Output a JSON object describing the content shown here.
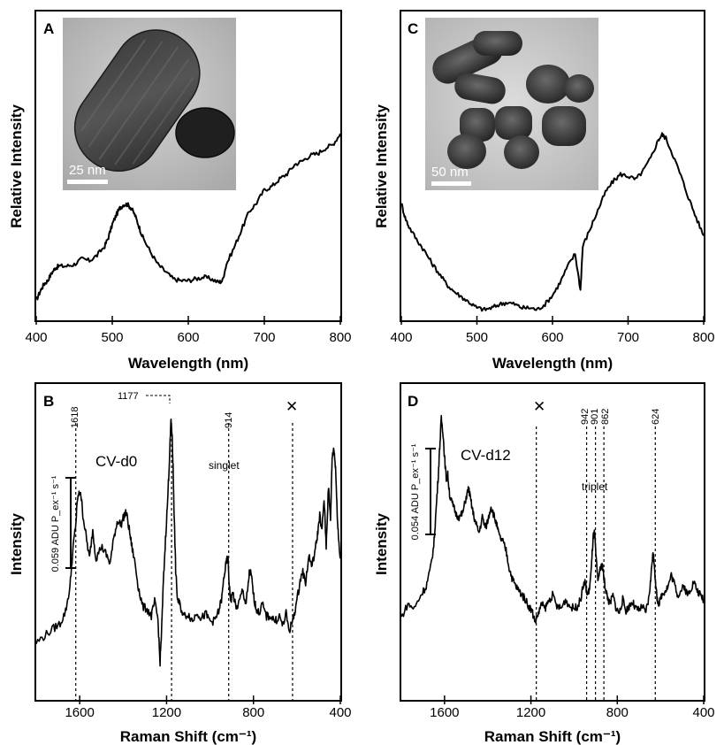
{
  "chart_data": [
    {
      "panel": "A",
      "type": "line",
      "xlabel": "Wavelength (nm)",
      "ylabel": "Relative Intensity",
      "xlim": [
        400,
        800
      ],
      "xticks": [
        "400",
        "500",
        "600",
        "700",
        "800"
      ],
      "y_axis_ticks": "none",
      "grid": false,
      "series": [
        {
          "x": [
            400,
            405,
            410,
            415,
            420,
            425,
            430,
            440,
            450,
            460,
            470,
            480,
            490,
            495,
            500,
            505,
            510,
            515,
            520,
            525,
            530,
            535,
            540,
            550,
            560,
            570,
            580,
            590,
            600,
            610,
            620,
            630,
            640,
            645,
            650,
            660,
            670,
            680,
            690,
            700,
            710,
            720,
            730,
            740,
            750,
            760,
            770,
            780,
            790,
            800
          ],
          "y": [
            0.05,
            0.1,
            0.14,
            0.16,
            0.2,
            0.23,
            0.24,
            0.24,
            0.25,
            0.28,
            0.27,
            0.3,
            0.35,
            0.4,
            0.47,
            0.52,
            0.56,
            0.58,
            0.58,
            0.56,
            0.52,
            0.46,
            0.4,
            0.32,
            0.25,
            0.21,
            0.17,
            0.16,
            0.16,
            0.17,
            0.18,
            0.17,
            0.15,
            0.16,
            0.25,
            0.34,
            0.44,
            0.54,
            0.59,
            0.66,
            0.68,
            0.72,
            0.75,
            0.8,
            0.82,
            0.85,
            0.86,
            0.89,
            0.91,
            0.97
          ]
        }
      ],
      "inset": {
        "description": "TEM image",
        "scale_bar": "25 nm"
      }
    },
    {
      "panel": "C",
      "type": "line",
      "xlabel": "Wavelength (nm)",
      "ylabel": "Relative Intensity",
      "xlim": [
        400,
        800
      ],
      "xticks": [
        "400",
        "500",
        "600",
        "700",
        "800"
      ],
      "y_axis_ticks": "none",
      "grid": false,
      "series": [
        {
          "x": [
            400,
            405,
            410,
            420,
            430,
            440,
            450,
            460,
            470,
            480,
            490,
            500,
            510,
            520,
            530,
            540,
            550,
            560,
            570,
            580,
            590,
            600,
            610,
            620,
            630,
            637,
            640,
            650,
            660,
            670,
            680,
            690,
            700,
            710,
            720,
            730,
            740,
            745,
            750,
            760,
            770,
            780,
            790,
            800
          ],
          "y": [
            0.6,
            0.52,
            0.47,
            0.4,
            0.34,
            0.27,
            0.21,
            0.15,
            0.11,
            0.08,
            0.05,
            0.02,
            0.01,
            0.02,
            0.04,
            0.05,
            0.04,
            0.02,
            0.02,
            0.01,
            0.04,
            0.09,
            0.16,
            0.25,
            0.32,
            0.12,
            0.36,
            0.46,
            0.56,
            0.66,
            0.72,
            0.76,
            0.75,
            0.73,
            0.78,
            0.85,
            0.95,
            0.98,
            0.96,
            0.86,
            0.75,
            0.63,
            0.52,
            0.42
          ]
        }
      ],
      "inset": {
        "description": "TEM image",
        "scale_bar": "50 nm"
      }
    },
    {
      "panel": "B",
      "type": "line",
      "xlabel": "Raman Shift (cm⁻¹)",
      "ylabel": "Intensity",
      "xlim": [
        1800,
        400
      ],
      "xticks": [
        "1600",
        "1200",
        "800",
        "400"
      ],
      "y_axis_ticks": "none",
      "grid": false,
      "species_label": "CV-d0",
      "scale_bar_label": "0.059 ADU P_ex⁻¹ s⁻¹",
      "marked_peaks": [
        "1618",
        "1177",
        "914"
      ],
      "peak_positions": [
        1618,
        1177,
        914
      ],
      "annotation": "singlet",
      "cross_mark": {
        "symbol": "✕",
        "x": 620
      },
      "series": [
        {
          "x": [
            1800,
            1760,
            1720,
            1690,
            1665,
            1645,
            1630,
            1618,
            1610,
            1596,
            1585,
            1570,
            1555,
            1540,
            1525,
            1500,
            1480,
            1460,
            1440,
            1425,
            1410,
            1395,
            1385,
            1372,
            1360,
            1345,
            1330,
            1310,
            1290,
            1270,
            1255,
            1240,
            1230,
            1222,
            1215,
            1205,
            1195,
            1188,
            1180,
            1175,
            1170,
            1165,
            1158,
            1150,
            1140,
            1120,
            1100,
            1080,
            1060,
            1040,
            1020,
            1000,
            980,
            960,
            945,
            935,
            925,
            918,
            912,
            905,
            895,
            880,
            865,
            850,
            835,
            825,
            818,
            810,
            800,
            790,
            775,
            760,
            740,
            720,
            700,
            680,
            665,
            650,
            635,
            620,
            605,
            590,
            575,
            560,
            545,
            530,
            515,
            505,
            495,
            485,
            475,
            465,
            455,
            445,
            438,
            430,
            422,
            415,
            408,
            400
          ],
          "y": [
            0.05,
            0.08,
            0.11,
            0.13,
            0.18,
            0.28,
            0.45,
            0.54,
            0.65,
            0.68,
            0.58,
            0.49,
            0.4,
            0.52,
            0.4,
            0.45,
            0.42,
            0.38,
            0.5,
            0.56,
            0.54,
            0.58,
            0.59,
            0.52,
            0.45,
            0.38,
            0.28,
            0.2,
            0.19,
            0.16,
            0.22,
            0.15,
            -0.03,
            0.12,
            0.3,
            0.48,
            0.64,
            0.79,
            0.97,
            0.92,
            0.78,
            0.58,
            0.35,
            0.23,
            0.21,
            0.16,
            0.17,
            0.14,
            0.18,
            0.15,
            0.17,
            0.14,
            0.14,
            0.18,
            0.24,
            0.33,
            0.38,
            0.41,
            0.3,
            0.22,
            0.26,
            0.19,
            0.22,
            0.27,
            0.21,
            0.28,
            0.35,
            0.33,
            0.25,
            0.2,
            0.17,
            0.21,
            0.16,
            0.16,
            0.14,
            0.16,
            0.12,
            0.17,
            0.1,
            0.14,
            0.2,
            0.28,
            0.35,
            0.3,
            0.41,
            0.37,
            0.44,
            0.5,
            0.58,
            0.51,
            0.65,
            0.45,
            0.7,
            0.56,
            0.82,
            0.86,
            0.78,
            0.6,
            0.48,
            0.4
          ]
        }
      ]
    },
    {
      "panel": "D",
      "type": "line",
      "xlabel": "Raman Shift (cm⁻¹)",
      "ylabel": "Intensity",
      "xlim": [
        1800,
        400
      ],
      "xticks": [
        "1600",
        "1200",
        "800",
        "400"
      ],
      "y_axis_ticks": "none",
      "grid": false,
      "species_label": "CV-d12",
      "scale_bar_label": "0.054 ADU P_ex⁻¹ s⁻¹",
      "marked_peaks": [
        "942",
        "901",
        "862",
        "624"
      ],
      "peak_positions": [
        942,
        901,
        862,
        624
      ],
      "annotation": "triplet",
      "cross_mark": {
        "symbol": "✕",
        "x": 1175
      },
      "series": [
        {
          "x": [
            1800,
            1770,
            1740,
            1710,
            1685,
            1665,
            1650,
            1640,
            1630,
            1622,
            1615,
            1608,
            1600,
            1592,
            1585,
            1575,
            1560,
            1545,
            1530,
            1515,
            1500,
            1488,
            1478,
            1468,
            1455,
            1440,
            1425,
            1410,
            1398,
            1385,
            1372,
            1360,
            1345,
            1330,
            1315,
            1300,
            1285,
            1270,
            1255,
            1240,
            1225,
            1210,
            1195,
            1180,
            1165,
            1150,
            1135,
            1120,
            1100,
            1080,
            1060,
            1040,
            1020,
            1000,
            985,
            970,
            958,
            948,
            940,
            930,
            920,
            912,
            905,
            898,
            890,
            880,
            870,
            862,
            855,
            845,
            835,
            820,
            805,
            790,
            775,
            760,
            745,
            730,
            715,
            700,
            685,
            670,
            655,
            645,
            636,
            628,
            622,
            615,
            605,
            595,
            580,
            565,
            550,
            535,
            520,
            505,
            490,
            475,
            460,
            445,
            430,
            415,
            400
          ],
          "y": [
            0.08,
            0.14,
            0.12,
            0.18,
            0.22,
            0.3,
            0.4,
            0.55,
            0.7,
            0.85,
            0.97,
            0.92,
            0.8,
            0.7,
            0.72,
            0.62,
            0.58,
            0.54,
            0.53,
            0.55,
            0.62,
            0.66,
            0.6,
            0.55,
            0.5,
            0.46,
            0.53,
            0.48,
            0.52,
            0.58,
            0.54,
            0.5,
            0.44,
            0.42,
            0.38,
            0.3,
            0.25,
            0.22,
            0.2,
            0.18,
            0.16,
            0.13,
            0.11,
            0.06,
            0.1,
            0.14,
            0.12,
            0.15,
            0.18,
            0.13,
            0.12,
            0.16,
            0.13,
            0.12,
            0.13,
            0.16,
            0.22,
            0.24,
            0.18,
            0.2,
            0.3,
            0.44,
            0.46,
            0.34,
            0.25,
            0.29,
            0.32,
            0.26,
            0.21,
            0.17,
            0.14,
            0.18,
            0.12,
            0.1,
            0.16,
            0.11,
            0.13,
            0.15,
            0.12,
            0.11,
            0.13,
            0.1,
            0.16,
            0.25,
            0.37,
            0.32,
            0.22,
            0.16,
            0.14,
            0.18,
            0.2,
            0.22,
            0.27,
            0.23,
            0.18,
            0.2,
            0.22,
            0.18,
            0.21,
            0.24,
            0.2,
            0.18,
            0.16
          ]
        }
      ]
    }
  ]
}
